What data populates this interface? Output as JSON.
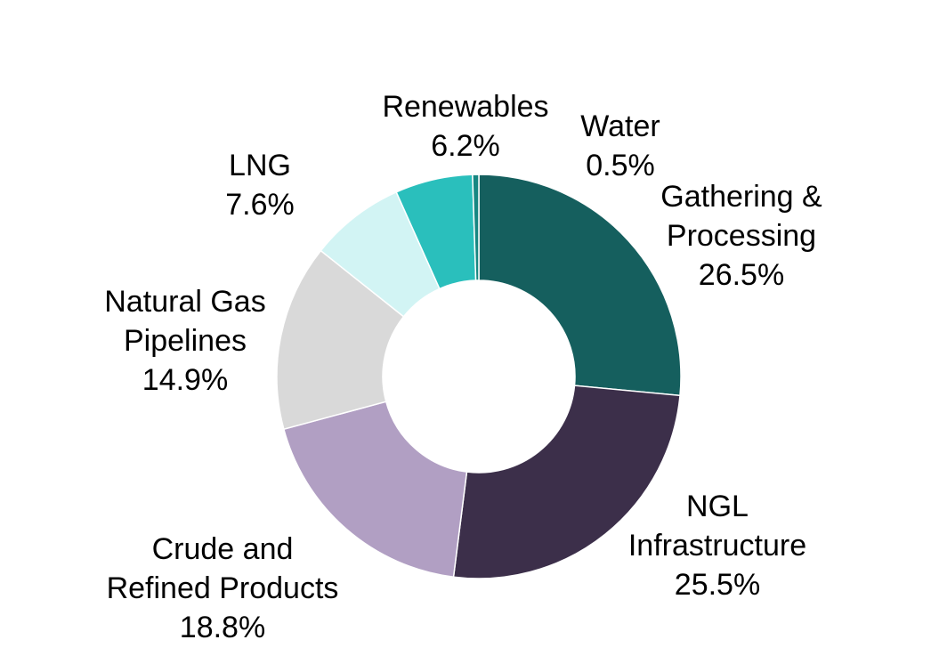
{
  "chart_data": {
    "type": "pie",
    "donut": true,
    "title": "",
    "legend": "none",
    "slices": [
      {
        "label": [
          "Gathering &",
          "Processing"
        ],
        "value": 26.5,
        "pct_text": "26.5%",
        "color": "#155f5e"
      },
      {
        "label": [
          "NGL",
          "Infrastructure"
        ],
        "value": 25.5,
        "pct_text": "25.5%",
        "color": "#3c2f4a"
      },
      {
        "label": [
          "Crude and",
          "Refined Products"
        ],
        "value": 18.8,
        "pct_text": "18.8%",
        "color": "#b19fc3"
      },
      {
        "label": [
          "Natural Gas",
          "Pipelines"
        ],
        "value": 14.9,
        "pct_text": "14.9%",
        "color": "#d9d9d9"
      },
      {
        "label": [
          "LNG"
        ],
        "value": 7.6,
        "pct_text": "7.6%",
        "color": "#d2f4f4"
      },
      {
        "label": [
          "Renewables"
        ],
        "value": 6.2,
        "pct_text": "6.2%",
        "color": "#2abfbc"
      },
      {
        "label": [
          "Water"
        ],
        "value": 0.5,
        "pct_text": "0.5%",
        "color": "#178782"
      }
    ]
  }
}
